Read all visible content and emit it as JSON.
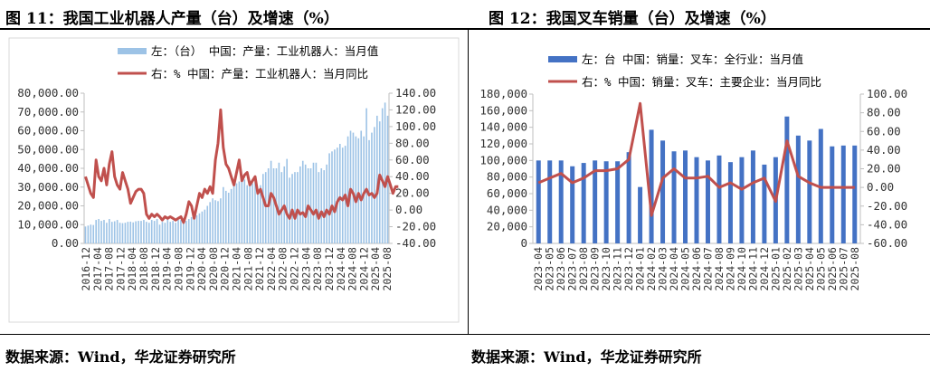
{
  "titles": {
    "left": "图 11：我国工业机器人产量（台）及增速（%）",
    "right": "图 12：我国叉车销量（台）及增速（%）"
  },
  "sources": {
    "left": "数据来源：Wind，华龙证券研究所",
    "right": "数据来源：Wind，华龙证券研究所"
  },
  "colors": {
    "bar_light": "#9DC3E6",
    "bar_dark": "#4472C4",
    "line": "#C0504D",
    "axis": "#bfbfbf"
  },
  "chart_data": [
    {
      "type": "bar+line",
      "left_axis": {
        "range": [
          0,
          80000
        ],
        "ticks": [
          "0.00",
          "10,000.00",
          "20,000.00",
          "30,000.00",
          "40,000.00",
          "50,000.00",
          "60,000.00",
          "70,000.00",
          "80,000.00"
        ]
      },
      "right_axis": {
        "range": [
          -40,
          140
        ],
        "ticks": [
          "-40.00",
          "-20.00",
          "0.00",
          "20.00",
          "40.00",
          "60.00",
          "80.00",
          "100.00",
          "120.00",
          "140.00"
        ]
      },
      "x_labels": [
        "2016-12",
        "2017-04",
        "2017-08",
        "2017-12",
        "2018-04",
        "2018-08",
        "2018-12",
        "2019-04",
        "2019-08",
        "2019-12",
        "2020-04",
        "2020-08",
        "2020-12",
        "2021-04",
        "2021-08",
        "2021-12",
        "2022-04",
        "2022-08",
        "2022-12",
        "2023-04",
        "2023-08",
        "2023-12",
        "2024-04",
        "2024-08",
        "2024-12",
        "2025-04",
        "2025-08"
      ],
      "x_start": "2016-12",
      "legend": [
        "左：（台） 中国：产量：工业机器人：当月值",
        "右：% 中国：产量：工业机器人：当月同比"
      ],
      "series": [
        {
          "name": "左：（台） 中国：产量：工业机器人：当月值",
          "axis": "left",
          "values": [
            9000,
            9500,
            10000,
            9800,
            12500,
            13000,
            12000,
            12500,
            11000,
            13000,
            11500,
            11800,
            12500,
            11000,
            10800,
            11000,
            11500,
            11600,
            11200,
            11800,
            12000,
            12000,
            12500,
            11500,
            11000,
            12500,
            12000,
            13000,
            10000,
            11500,
            11000,
            13000,
            11500,
            12000,
            11000,
            12500,
            12500,
            13000,
            12000,
            13000,
            14000,
            15000,
            15000,
            16000,
            17000,
            18000,
            20000,
            22000,
            24000,
            23000,
            22500,
            24000,
            30000,
            28000,
            27000,
            29000,
            31000,
            32000,
            33000,
            35000,
            34000,
            31000,
            33000,
            32000,
            33000,
            29000,
            31000,
            37000,
            38000,
            40000,
            44000,
            40000,
            40000,
            43000,
            38000,
            41000,
            45000,
            35000,
            37000,
            38000,
            38000,
            41000,
            44000,
            42000,
            40000,
            40000,
            43000,
            43000,
            38000,
            40000,
            39000,
            42000,
            48000,
            49000,
            50000,
            51000,
            53000,
            51000,
            52000,
            57000,
            60000,
            59000,
            57000,
            56000,
            60000,
            57000,
            72000,
            55000,
            59000,
            62000,
            68000,
            65000,
            72000,
            75000,
            68000
          ]
        },
        {
          "name": "右：% 中国：产量：工业机器人：当月同比",
          "axis": "right",
          "values": [
            40,
            30,
            20,
            15,
            60,
            40,
            35,
            50,
            30,
            55,
            70,
            40,
            30,
            25,
            45,
            35,
            25,
            8,
            15,
            22,
            25,
            25,
            20,
            -5,
            -10,
            -5,
            -8,
            -5,
            -8,
            -12,
            -8,
            -10,
            -8,
            -10,
            -12,
            -10,
            -8,
            -15,
            -5,
            10,
            5,
            -10,
            5,
            20,
            15,
            25,
            20,
            28,
            20,
            60,
            80,
            120,
            75,
            55,
            50,
            40,
            30,
            45,
            60,
            35,
            42,
            45,
            30,
            35,
            40,
            20,
            25,
            15,
            5,
            5,
            20,
            15,
            5,
            -5,
            0,
            5,
            -5,
            -10,
            0,
            -10,
            0,
            -5,
            -3,
            -8,
            5,
            0,
            -5,
            0,
            -10,
            -2,
            -8,
            0,
            -5,
            5,
            -2,
            10,
            15,
            12,
            18,
            5,
            25,
            20,
            10,
            20,
            12,
            20,
            25,
            18,
            20,
            15,
            20,
            42,
            35,
            28,
            40,
            30,
            20,
            28,
            28
          ]
        }
      ]
    },
    {
      "type": "bar+line",
      "left_axis": {
        "range": [
          0,
          180000
        ],
        "ticks": [
          "0",
          "20,000",
          "40,000",
          "60,000",
          "80,000",
          "100,000",
          "120,000",
          "140,000",
          "160,000",
          "180,000"
        ]
      },
      "right_axis": {
        "range": [
          -60,
          100
        ],
        "ticks": [
          "-60.00",
          "-40.00",
          "-20.00",
          "0.00",
          "20.00",
          "40.00",
          "60.00",
          "80.00",
          "100.00"
        ]
      },
      "categories": [
        "2023-04",
        "2023-05",
        "2023-06",
        "2023-07",
        "2023-08",
        "2023-09",
        "2023-10",
        "2023-11",
        "2023-12",
        "2024-01",
        "2024-02",
        "2024-03",
        "2024-04",
        "2024-05",
        "2024-06",
        "2024-07",
        "2024-08",
        "2024-09",
        "2024-10",
        "2024-11",
        "2024-12",
        "2025-01",
        "2025-02",
        "2025-03",
        "2025-04",
        "2025-05",
        "2025-06",
        "2025-07",
        "2025-08"
      ],
      "legend": [
        "左：台 中国：销量：叉车：全行业：当月值",
        "右：% 中国：销量：叉车：主要企业：当月同比"
      ],
      "series": [
        {
          "name": "左：台 中国：销量：叉车：全行业：当月值",
          "axis": "left",
          "values": [
            100000,
            100000,
            100000,
            93000,
            97000,
            100000,
            99000,
            99000,
            110000,
            68000,
            137000,
            124000,
            111000,
            112000,
            104000,
            100000,
            106000,
            98000,
            104000,
            112000,
            95000,
            104000,
            153000,
            130000,
            124000,
            138000,
            117000,
            118000,
            118000
          ]
        },
        {
          "name": "右：% 中国：销量：叉车：主要企业：当月同比",
          "axis": "right",
          "values": [
            5,
            10,
            15,
            5,
            10,
            18,
            18,
            20,
            30,
            90,
            -30,
            10,
            20,
            10,
            10,
            12,
            0,
            5,
            -2,
            5,
            10,
            -15,
            50,
            12,
            5,
            0,
            0,
            0,
            0
          ]
        }
      ]
    }
  ]
}
